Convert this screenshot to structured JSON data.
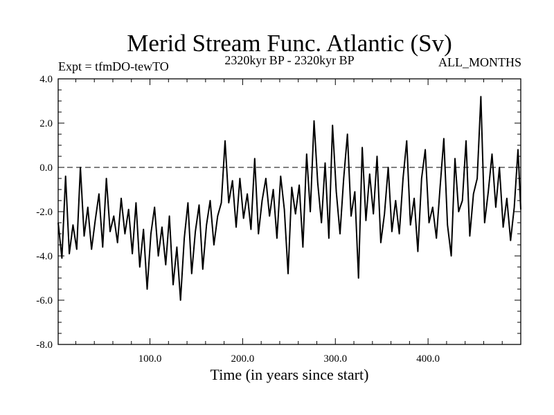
{
  "chart_data": {
    "type": "line",
    "title": "Merid Stream Func. Atlantic (Sv)",
    "subtitle_left": "Expt = tfmDO-tewTO",
    "subtitle_center": "2320kyr BP - 2320kyr BP",
    "subtitle_right": "ALL_MONTHS",
    "xlabel": "Time (in years since start)",
    "ylabel": "",
    "xlim": [
      1,
      500
    ],
    "ylim": [
      -8.0,
      4.0
    ],
    "x_ticks": [
      100,
      200,
      300,
      400
    ],
    "x_tick_labels": [
      "100.0",
      "200.0",
      "300.0",
      "400.0"
    ],
    "y_ticks": [
      -8,
      -6,
      -4,
      -2,
      0,
      2,
      4
    ],
    "y_tick_labels": [
      "-8.0",
      "-6.0",
      "-4.0",
      "-2.0",
      "0.0",
      "2.0",
      "4.0"
    ],
    "zero_line": {
      "y": 0.0,
      "style": "dashed"
    },
    "series": [
      {
        "name": "Merid Stream Func. Atlantic",
        "x": [
          1,
          5,
          9,
          13,
          17,
          21,
          25,
          29,
          33,
          37,
          41,
          45,
          49,
          53,
          57,
          61,
          65,
          69,
          73,
          77,
          81,
          85,
          89,
          93,
          97,
          101,
          105,
          109,
          113,
          117,
          121,
          125,
          129,
          133,
          137,
          141,
          145,
          149,
          153,
          157,
          161,
          165,
          169,
          173,
          177,
          181,
          185,
          189,
          193,
          197,
          201,
          205,
          209,
          213,
          217,
          221,
          225,
          229,
          233,
          237,
          241,
          245,
          249,
          253,
          257,
          261,
          265,
          269,
          273,
          277,
          281,
          285,
          289,
          293,
          297,
          301,
          305,
          309,
          313,
          317,
          321,
          325,
          329,
          333,
          337,
          341,
          345,
          349,
          353,
          357,
          361,
          365,
          369,
          373,
          377,
          381,
          385,
          389,
          393,
          397,
          401,
          405,
          409,
          413,
          417,
          421,
          425,
          429,
          433,
          437,
          441,
          445,
          449,
          453,
          457,
          461,
          465,
          469,
          473,
          477,
          481,
          485,
          489,
          493,
          497,
          500
        ],
        "y": [
          -2.5,
          -4.1,
          -0.4,
          -3.9,
          -2.6,
          -3.7,
          0.0,
          -3.1,
          -1.8,
          -3.7,
          -2.4,
          -1.2,
          -3.6,
          -0.5,
          -2.9,
          -2.2,
          -3.4,
          -1.4,
          -3.0,
          -1.9,
          -3.9,
          -1.6,
          -4.5,
          -2.8,
          -5.5,
          -3.0,
          -1.8,
          -4.0,
          -2.7,
          -4.4,
          -2.2,
          -5.3,
          -3.6,
          -6.0,
          -3.2,
          -1.6,
          -4.8,
          -2.9,
          -1.7,
          -4.6,
          -2.6,
          -1.5,
          -3.5,
          -2.2,
          -1.6,
          1.2,
          -1.6,
          -0.6,
          -2.7,
          -0.5,
          -2.3,
          -1.2,
          -2.8,
          0.4,
          -3.0,
          -1.5,
          -0.5,
          -2.2,
          -1.0,
          -3.2,
          -0.4,
          -1.9,
          -4.8,
          -0.9,
          -2.1,
          -0.8,
          -3.6,
          0.6,
          -2.0,
          2.1,
          -0.7,
          -2.5,
          0.2,
          -3.2,
          1.9,
          -1.1,
          -3.0,
          -0.5,
          1.5,
          -2.2,
          -1.1,
          -5.0,
          0.9,
          -2.4,
          -0.3,
          -2.1,
          0.5,
          -3.4,
          -2.1,
          0.0,
          -2.9,
          -1.5,
          -3.0,
          -0.5,
          1.2,
          -2.6,
          -1.4,
          -3.8,
          -0.5,
          0.8,
          -2.5,
          -1.8,
          -3.2,
          -0.9,
          1.3,
          -2.6,
          -4.0,
          0.4,
          -2.0,
          -1.5,
          1.2,
          -3.1,
          -1.2,
          -0.5,
          3.2,
          -2.5,
          -1.1,
          0.6,
          -1.8,
          0.0,
          -2.7,
          -1.4,
          -3.3,
          -1.8,
          0.8,
          -1.9
        ]
      }
    ]
  }
}
